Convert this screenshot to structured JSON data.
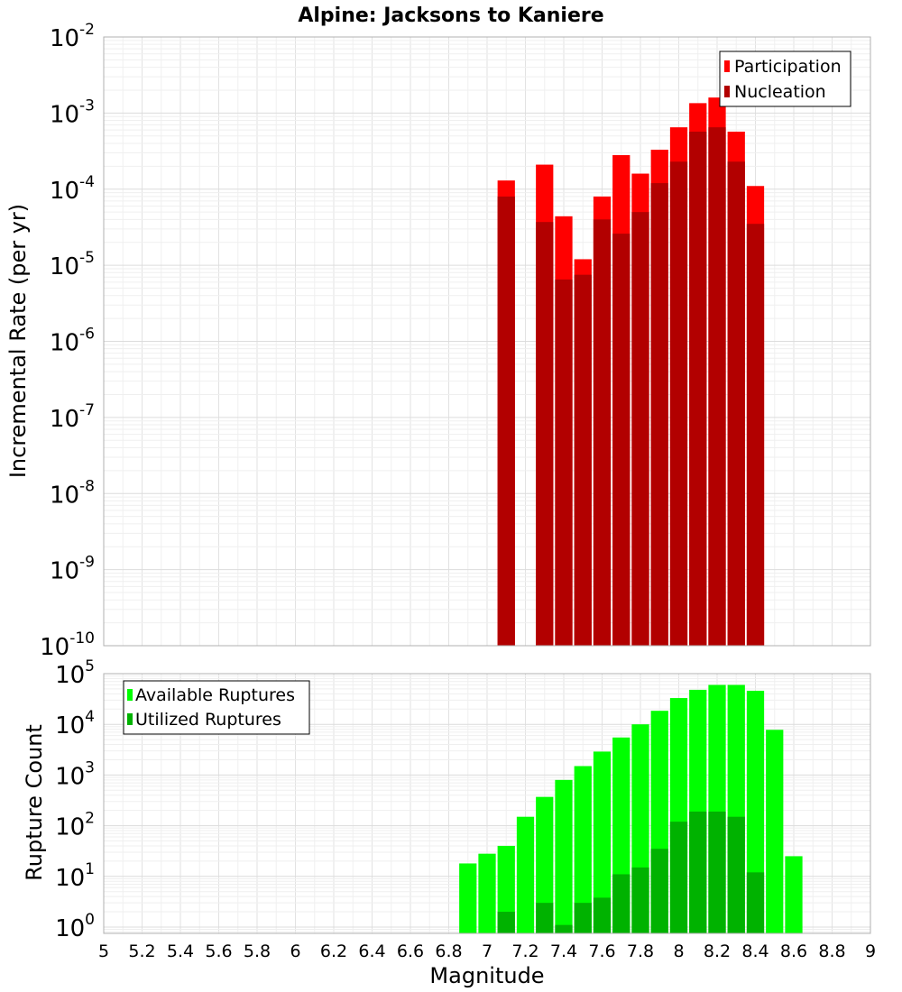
{
  "chart_data": [
    {
      "type": "bar",
      "title": "Alpine: Jacksons to Kaniere",
      "ylabel": "Incremental Rate (per yr)",
      "xlabel": "",
      "yscale": "log",
      "ylim": [
        1e-10,
        0.01
      ],
      "xlim": [
        5,
        9
      ],
      "bin_width": 0.1,
      "grid": true,
      "legend_position": "top-right",
      "y_ticks": [
        {
          "base": "10",
          "exp": "-10"
        },
        {
          "base": "10",
          "exp": "-9"
        },
        {
          "base": "10",
          "exp": "-8"
        },
        {
          "base": "10",
          "exp": "-7"
        },
        {
          "base": "10",
          "exp": "-6"
        },
        {
          "base": "10",
          "exp": "-5"
        },
        {
          "base": "10",
          "exp": "-4"
        },
        {
          "base": "10",
          "exp": "-3"
        },
        {
          "base": "10",
          "exp": "-2"
        }
      ],
      "series": [
        {
          "name": "Participation",
          "color": "#ff0000",
          "x": [
            7.1,
            7.3,
            7.4,
            7.5,
            7.6,
            7.7,
            7.8,
            7.9,
            8.0,
            8.1,
            8.2,
            8.3,
            8.4
          ],
          "values": [
            0.00013,
            0.00021,
            4.4e-05,
            1.2e-05,
            8e-05,
            0.00028,
            0.00016,
            0.00033,
            0.00065,
            0.00135,
            0.0016,
            0.00057,
            0.00011
          ]
        },
        {
          "name": "Nucleation",
          "color": "#b20000",
          "x": [
            7.1,
            7.3,
            7.4,
            7.5,
            7.6,
            7.7,
            7.8,
            7.9,
            8.0,
            8.1,
            8.2,
            8.3,
            8.4
          ],
          "values": [
            8e-05,
            3.7e-05,
            6.5e-06,
            7.5e-06,
            4e-05,
            2.6e-05,
            5e-05,
            0.00012,
            0.00023,
            0.00057,
            0.00065,
            0.00023,
            3.5e-05
          ]
        }
      ]
    },
    {
      "type": "bar",
      "title": "",
      "ylabel": "Rupture Count",
      "xlabel": "Magnitude",
      "yscale": "log",
      "ylim": [
        0.75,
        100000
      ],
      "xlim": [
        5,
        9
      ],
      "bin_width": 0.1,
      "grid": true,
      "legend_position": "top-left",
      "x_ticks": [
        "5",
        "5.2",
        "5.4",
        "5.6",
        "5.8",
        "6",
        "6.2",
        "6.4",
        "6.6",
        "6.8",
        "7",
        "7.2",
        "7.4",
        "7.6",
        "7.8",
        "8",
        "8.2",
        "8.4",
        "8.6",
        "8.8",
        "9"
      ],
      "y_ticks": [
        {
          "base": "10",
          "exp": "0"
        },
        {
          "base": "10",
          "exp": "1"
        },
        {
          "base": "10",
          "exp": "2"
        },
        {
          "base": "10",
          "exp": "3"
        },
        {
          "base": "10",
          "exp": "4"
        },
        {
          "base": "10",
          "exp": "5"
        }
      ],
      "series": [
        {
          "name": "Available Ruptures",
          "color": "#00ff00",
          "x": [
            6.9,
            7.0,
            7.1,
            7.2,
            7.3,
            7.4,
            7.5,
            7.6,
            7.7,
            7.8,
            7.9,
            8.0,
            8.1,
            8.2,
            8.3,
            8.4,
            8.5,
            8.6
          ],
          "values": [
            18,
            28,
            40,
            150,
            370,
            800,
            1500,
            2900,
            5500,
            10000,
            18500,
            33000,
            48000,
            60000,
            60000,
            46000,
            7800,
            25
          ]
        },
        {
          "name": "Utilized Ruptures",
          "color": "#00b200",
          "x": [
            7.1,
            7.3,
            7.4,
            7.5,
            7.6,
            7.7,
            7.8,
            7.9,
            8.0,
            8.1,
            8.2,
            8.3,
            8.4
          ],
          "values": [
            2,
            3,
            1.1,
            3,
            3.8,
            11,
            15,
            35,
            120,
            190,
            190,
            150,
            12
          ]
        }
      ]
    }
  ]
}
